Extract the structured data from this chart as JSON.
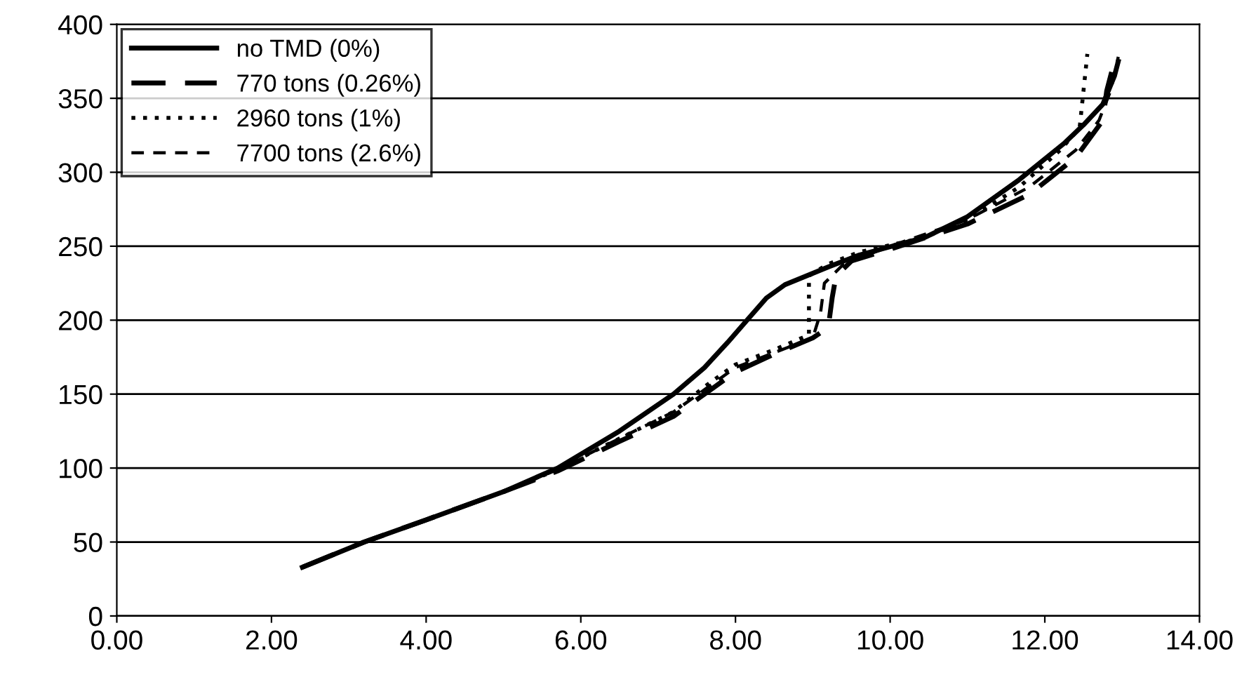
{
  "chart_data": {
    "type": "line",
    "xlim": [
      0,
      14
    ],
    "ylim": [
      0,
      400
    ],
    "xticks": [
      {
        "value": 0,
        "label": "0.00"
      },
      {
        "value": 2,
        "label": "2.00"
      },
      {
        "value": 4,
        "label": "4.00"
      },
      {
        "value": 6,
        "label": "6.00"
      },
      {
        "value": 8,
        "label": "8.00"
      },
      {
        "value": 10,
        "label": "10.00"
      },
      {
        "value": 12,
        "label": "12.00"
      },
      {
        "value": 14,
        "label": "14.00"
      }
    ],
    "yticks": [
      0,
      50,
      100,
      150,
      200,
      250,
      300,
      350,
      400
    ],
    "grid": "y",
    "legend": "top left",
    "series": [
      {
        "name": "no TMD (0%)",
        "color": "#000000",
        "line_style": "solid",
        "x": [
          2.4,
          3.2,
          4,
          5,
          5.7,
          6.5,
          7.2,
          7.6,
          7.9,
          8.15,
          8.4,
          8.64,
          9.2,
          9.6,
          10.45,
          11,
          11.67,
          12.26,
          12.5,
          12.75,
          12.9,
          12.95
        ],
        "values": [
          33,
          50,
          65,
          84,
          100,
          125,
          150,
          168,
          185,
          200,
          215,
          224,
          236,
          244,
          256,
          270,
          295,
          320,
          332,
          346,
          365,
          375
        ]
      },
      {
        "name": "770 tons (0.26%)",
        "color": "#000000",
        "line_style": "longdash",
        "x": [
          2.4,
          3.2,
          4,
          5,
          5.7,
          6.5,
          7.2,
          7.6,
          8,
          8.5,
          9,
          9.2,
          9.25,
          9.3,
          9.5,
          10,
          11,
          11.8,
          12.4,
          12.75,
          12.8,
          12.9
        ],
        "values": [
          33,
          50,
          65,
          84,
          98,
          118,
          135,
          150,
          165,
          177,
          188,
          195,
          215,
          230,
          240,
          248,
          265,
          285,
          310,
          335,
          355,
          375
        ]
      },
      {
        "name": "2960 tons (1%)",
        "color": "#000000",
        "line_style": "dotted",
        "x": [
          2.4,
          3.2,
          4,
          5,
          5.7,
          6.5,
          7.2,
          7.6,
          8,
          8.5,
          8.95,
          8.95,
          9.2,
          9.6,
          10.45,
          11,
          11.67,
          12.2,
          12.45,
          12.5,
          12.55
        ],
        "values": [
          33,
          50,
          65,
          84,
          99,
          120,
          138,
          155,
          170,
          180,
          190,
          230,
          238,
          246,
          256,
          268,
          290,
          315,
          330,
          355,
          380
        ]
      },
      {
        "name": "7700 tons (2.6%)",
        "color": "#000000",
        "line_style": "dashed",
        "x": [
          2.4,
          3.2,
          4,
          5,
          5.7,
          6.5,
          7.2,
          7.6,
          8,
          8.5,
          9,
          9.1,
          9.15,
          9.4,
          10,
          11,
          11.8,
          12.4,
          12.7,
          12.85,
          12.95
        ],
        "values": [
          33,
          50,
          65,
          84,
          99,
          120,
          138,
          153,
          168,
          178,
          188,
          205,
          225,
          238,
          250,
          268,
          290,
          315,
          335,
          355,
          378
        ]
      }
    ]
  }
}
